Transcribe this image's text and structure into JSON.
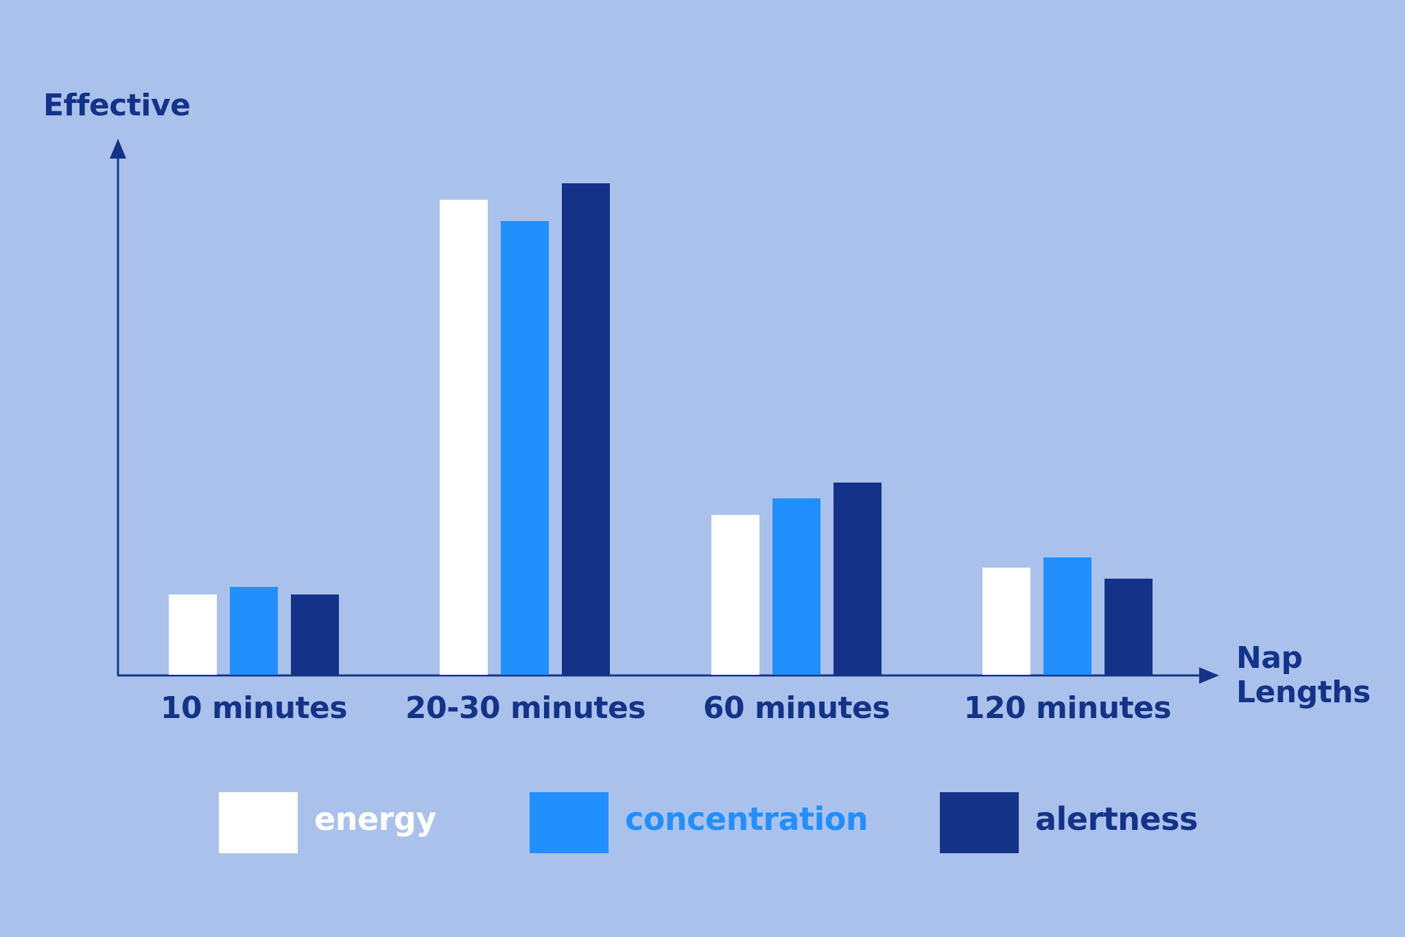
{
  "chart_data": {
    "type": "bar",
    "title": "",
    "xlabel": "Nap Lengths",
    "ylabel": "Effective",
    "ylim": [
      0,
      100
    ],
    "grid": false,
    "legend_position": "bottom",
    "categories": [
      "10 minutes",
      "20-30 minutes",
      "60 minutes",
      "120 minutes"
    ],
    "series": [
      {
        "name": "energy",
        "color": "#ffffff",
        "values": [
          15,
          89,
          30,
          20
        ]
      },
      {
        "name": "concentration",
        "color": "#228fff",
        "values": [
          16.5,
          85,
          33,
          22
        ]
      },
      {
        "name": "alertness",
        "color": "#143388",
        "values": [
          15,
          92,
          36,
          18
        ]
      }
    ]
  },
  "axes": {
    "y_label": "Effective",
    "x_label_line1": "Nap",
    "x_label_line2": "Lengths",
    "color": "#143388"
  },
  "colors": {
    "background": "#aac2eb",
    "energy": "#ffffff",
    "concentration": "#228fff",
    "alertness": "#143388"
  },
  "legend": [
    {
      "label": "energy",
      "color": "#ffffff"
    },
    {
      "label": "concentration",
      "color": "#228fff"
    },
    {
      "label": "alertness",
      "color": "#143388"
    }
  ]
}
